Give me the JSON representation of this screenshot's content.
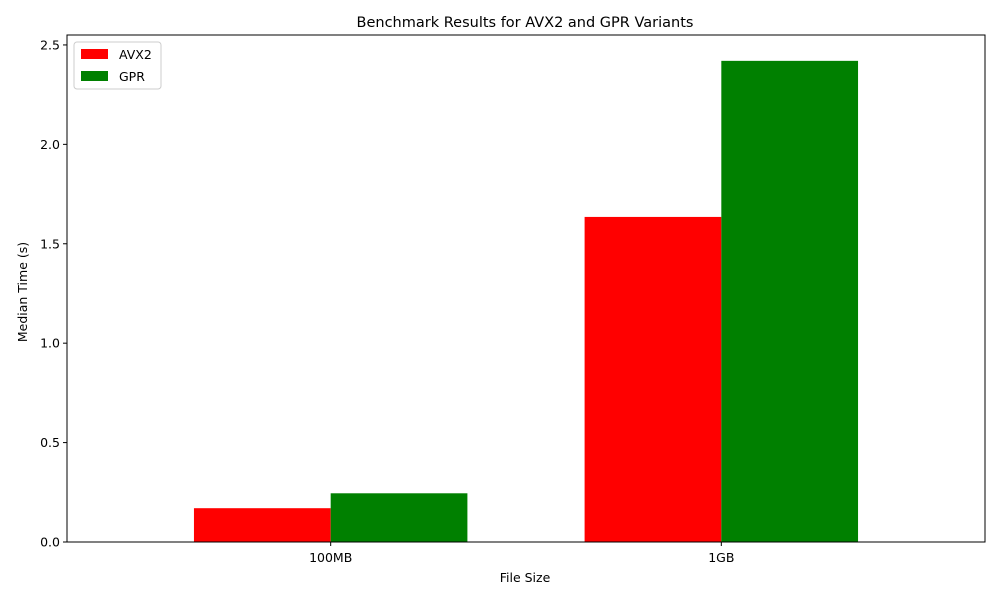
{
  "chart_data": {
    "type": "bar",
    "title": "Benchmark Results for AVX2 and GPR Variants",
    "xlabel": "File Size",
    "ylabel": "Median Time (s)",
    "categories": [
      "100MB",
      "1GB"
    ],
    "series": [
      {
        "name": "AVX2",
        "color": "#ff0000",
        "values": [
          0.17,
          1.635
        ]
      },
      {
        "name": "GPR",
        "color": "#008000",
        "values": [
          0.245,
          2.42
        ]
      }
    ],
    "ylim": [
      0,
      2.55
    ],
    "yticks": [
      0.0,
      0.5,
      1.0,
      1.5,
      2.0,
      2.5
    ],
    "ytick_labels": [
      "0.0",
      "0.5",
      "1.0",
      "1.5",
      "2.0",
      "2.5"
    ],
    "grid": false,
    "legend_position": "top-left"
  }
}
